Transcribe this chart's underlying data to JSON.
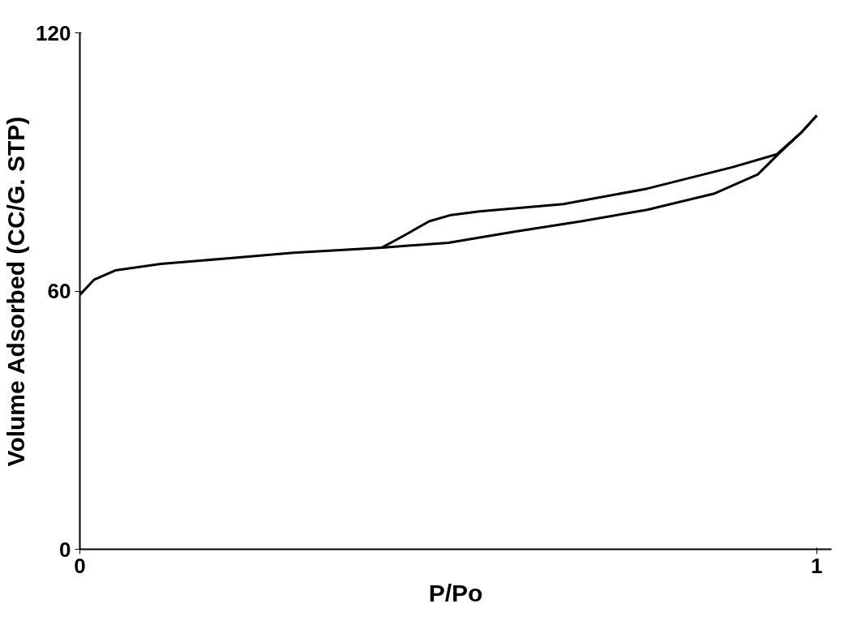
{
  "chart_data": {
    "type": "line",
    "xlabel": "P/Po",
    "ylabel": "Volume Adsorbed (CC/G. STP)",
    "xlim": [
      0,
      1.02
    ],
    "ylim": [
      0,
      120
    ],
    "xticks": [
      0,
      1
    ],
    "yticks": [
      0,
      60,
      120
    ],
    "grid": false,
    "marker": "none",
    "line_style": "solid",
    "series": [
      {
        "color": "#000000",
        "x": [
          0,
          0.019,
          0.048,
          0.11,
          0.2,
          0.29,
          0.41,
          0.5,
          0.59,
          0.68,
          0.77,
          0.86,
          0.92,
          0.95,
          0.98,
          1.0
        ],
        "values": [
          59.1,
          62.6,
          64.8,
          66.3,
          67.6,
          68.9,
          70.1,
          71.2,
          73.8,
          76.2,
          78.9,
          82.6,
          87.1,
          92.2,
          97.0,
          100.8
        ]
      },
      {
        "color": "#000000",
        "x": [
          0.41,
          0.44,
          0.474,
          0.502,
          0.542,
          0.656,
          0.77,
          0.886,
          0.946,
          0.98,
          1.0
        ],
        "values": [
          70.1,
          72.9,
          76.2,
          77.6,
          78.5,
          80.2,
          83.8,
          88.8,
          91.8,
          97.0,
          100.8
        ]
      }
    ]
  }
}
